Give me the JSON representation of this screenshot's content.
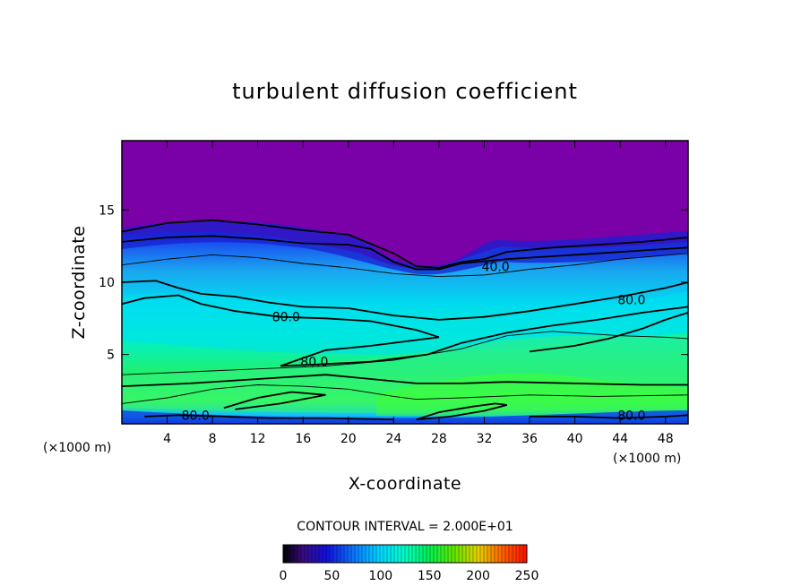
{
  "chart_data": {
    "type": "heatmap",
    "title": "turbulent diffusion coefficient",
    "xlabel": "X-coordinate",
    "ylabel": "Z-coordinate",
    "x_unit": "(×1000 m)",
    "y_unit": "(×1000 m)",
    "xlim": [
      0,
      50
    ],
    "ylim": [
      0.2,
      19.8
    ],
    "x_ticks": [
      4,
      8,
      12,
      16,
      20,
      24,
      28,
      32,
      36,
      40,
      44,
      48
    ],
    "y_ticks": [
      5,
      10,
      15
    ],
    "contour_interval_text": "CONTOUR INTERVAL = 2.000E+01",
    "colorbar": {
      "min": 0,
      "max": 250,
      "ticks": [
        0,
        50,
        100,
        150,
        200,
        250
      ],
      "colors": [
        "#000000",
        "#6a0aa0",
        "#1010e0",
        "#0a80ff",
        "#00d8ff",
        "#00ffc8",
        "#00f050",
        "#30e000",
        "#c0e000",
        "#ffb000",
        "#ff5000",
        "#ff0000"
      ]
    },
    "contour_labels": [
      {
        "x": 33.0,
        "z": 11.1,
        "text": "40.0"
      },
      {
        "x": 14.5,
        "z": 7.6,
        "text": "80.0"
      },
      {
        "x": 17.0,
        "z": 4.5,
        "text": "80.0"
      },
      {
        "x": 45.0,
        "z": 8.8,
        "text": "80.0"
      },
      {
        "x": 6.5,
        "z": 0.8,
        "text": "80.0"
      },
      {
        "x": 45.0,
        "z": 0.8,
        "text": "80.0"
      }
    ],
    "contours": [
      {
        "value": 40,
        "points": [
          [
            0,
            13.5
          ],
          [
            4,
            14.1
          ],
          [
            8,
            14.3
          ],
          [
            12,
            14.0
          ],
          [
            16,
            13.6
          ],
          [
            20,
            13.3
          ],
          [
            24,
            12.0
          ],
          [
            26,
            11.1
          ],
          [
            28,
            11.0
          ],
          [
            30,
            11.4
          ],
          [
            32,
            11.6
          ],
          [
            34,
            12.1
          ],
          [
            38,
            12.4
          ],
          [
            42,
            12.6
          ],
          [
            46,
            12.8
          ],
          [
            50,
            13.1
          ]
        ]
      },
      {
        "value": 40,
        "points": [
          [
            0,
            12.8
          ],
          [
            4,
            13.1
          ],
          [
            8,
            13.2
          ],
          [
            12,
            13.0
          ],
          [
            16,
            12.7
          ],
          [
            20,
            12.6
          ],
          [
            22,
            12.3
          ],
          [
            24,
            11.4
          ],
          [
            26,
            10.9
          ],
          [
            28,
            10.9
          ],
          [
            30,
            11.3
          ],
          [
            34,
            11.6
          ],
          [
            38,
            11.8
          ],
          [
            42,
            12.0
          ],
          [
            46,
            12.2
          ],
          [
            50,
            12.4
          ]
        ]
      },
      {
        "value": 60,
        "points": [
          [
            0,
            11.2
          ],
          [
            4,
            11.6
          ],
          [
            8,
            11.9
          ],
          [
            12,
            11.7
          ],
          [
            16,
            11.3
          ],
          [
            20,
            11.0
          ],
          [
            24,
            10.6
          ],
          [
            28,
            10.4
          ],
          [
            32,
            10.5
          ],
          [
            36,
            10.9
          ],
          [
            40,
            11.2
          ],
          [
            44,
            11.6
          ],
          [
            50,
            12.0
          ]
        ]
      },
      {
        "value": 80,
        "points": [
          [
            0,
            10.0
          ],
          [
            3,
            10.1
          ],
          [
            5,
            9.6
          ],
          [
            7,
            9.2
          ],
          [
            10,
            9.0
          ],
          [
            13,
            8.6
          ],
          [
            16,
            8.3
          ],
          [
            20,
            8.2
          ],
          [
            24,
            7.7
          ],
          [
            28,
            7.4
          ],
          [
            32,
            7.6
          ],
          [
            36,
            8.0
          ],
          [
            40,
            8.5
          ],
          [
            44,
            9.0
          ],
          [
            48,
            9.6
          ],
          [
            50,
            10.0
          ]
        ]
      },
      {
        "value": 80,
        "points": [
          [
            0,
            8.5
          ],
          [
            2,
            8.9
          ],
          [
            5,
            9.1
          ],
          [
            7,
            8.5
          ],
          [
            10,
            8.0
          ],
          [
            14,
            7.6
          ],
          [
            18,
            7.5
          ],
          [
            22,
            7.3
          ],
          [
            26,
            6.7
          ],
          [
            28,
            6.2
          ],
          [
            26,
            6.0
          ],
          [
            22,
            5.6
          ],
          [
            18,
            5.3
          ],
          [
            14,
            4.2
          ],
          [
            17,
            4.3
          ],
          [
            22,
            4.5
          ],
          [
            27,
            5.0
          ],
          [
            30,
            5.8
          ],
          [
            34,
            6.5
          ],
          [
            38,
            7.0
          ],
          [
            42,
            7.4
          ],
          [
            46,
            7.9
          ],
          [
            48,
            8.1
          ],
          [
            50,
            8.3
          ]
        ]
      },
      {
        "value": 80,
        "points": [
          [
            36,
            5.2
          ],
          [
            40,
            5.6
          ],
          [
            43,
            6.1
          ],
          [
            46,
            6.8
          ],
          [
            48,
            7.4
          ],
          [
            50,
            7.9
          ]
        ]
      },
      {
        "value": 100,
        "points": [
          [
            0,
            3.6
          ],
          [
            6,
            3.8
          ],
          [
            12,
            4.0
          ],
          [
            18,
            4.2
          ],
          [
            24,
            4.6
          ],
          [
            30,
            5.4
          ],
          [
            34,
            6.3
          ],
          [
            38,
            6.6
          ],
          [
            40,
            6.5
          ],
          [
            44,
            6.3
          ],
          [
            48,
            6.2
          ],
          [
            50,
            6.1
          ]
        ]
      },
      {
        "value": 120,
        "points": [
          [
            0,
            2.8
          ],
          [
            6,
            3.0
          ],
          [
            12,
            3.3
          ],
          [
            18,
            3.6
          ],
          [
            22,
            3.3
          ],
          [
            26,
            3.0
          ],
          [
            30,
            3.0
          ],
          [
            34,
            3.1
          ],
          [
            40,
            3.0
          ],
          [
            46,
            2.9
          ],
          [
            50,
            2.9
          ]
        ]
      },
      {
        "value": 140,
        "points": [
          [
            0,
            1.6
          ],
          [
            4,
            2.0
          ],
          [
            8,
            2.6
          ],
          [
            12,
            2.9
          ],
          [
            16,
            2.8
          ],
          [
            20,
            2.6
          ],
          [
            24,
            2.1
          ],
          [
            26,
            1.9
          ],
          [
            30,
            2.0
          ],
          [
            36,
            2.2
          ],
          [
            42,
            2.1
          ],
          [
            50,
            2.2
          ]
        ]
      },
      {
        "value": 160,
        "points": [
          [
            9,
            1.3
          ],
          [
            12,
            2.0
          ],
          [
            15,
            2.4
          ],
          [
            18,
            2.2
          ],
          [
            14,
            1.6
          ],
          [
            10,
            1.2
          ]
        ]
      },
      {
        "value": 160,
        "points": [
          [
            26,
            0.5
          ],
          [
            28,
            1.0
          ],
          [
            31,
            1.4
          ],
          [
            33,
            1.6
          ],
          [
            34,
            1.5
          ],
          [
            32,
            1.1
          ],
          [
            29,
            0.7
          ],
          [
            26,
            0.5
          ]
        ]
      },
      {
        "value": 80,
        "points": [
          [
            2,
            0.7
          ],
          [
            5,
            0.8
          ],
          [
            9,
            0.7
          ],
          [
            13,
            0.6
          ],
          [
            18,
            0.6
          ],
          [
            24,
            0.5
          ]
        ]
      },
      {
        "value": 80,
        "points": [
          [
            36,
            0.7
          ],
          [
            40,
            0.7
          ],
          [
            44,
            0.6
          ],
          [
            48,
            0.7
          ],
          [
            50,
            0.8
          ]
        ]
      }
    ]
  }
}
